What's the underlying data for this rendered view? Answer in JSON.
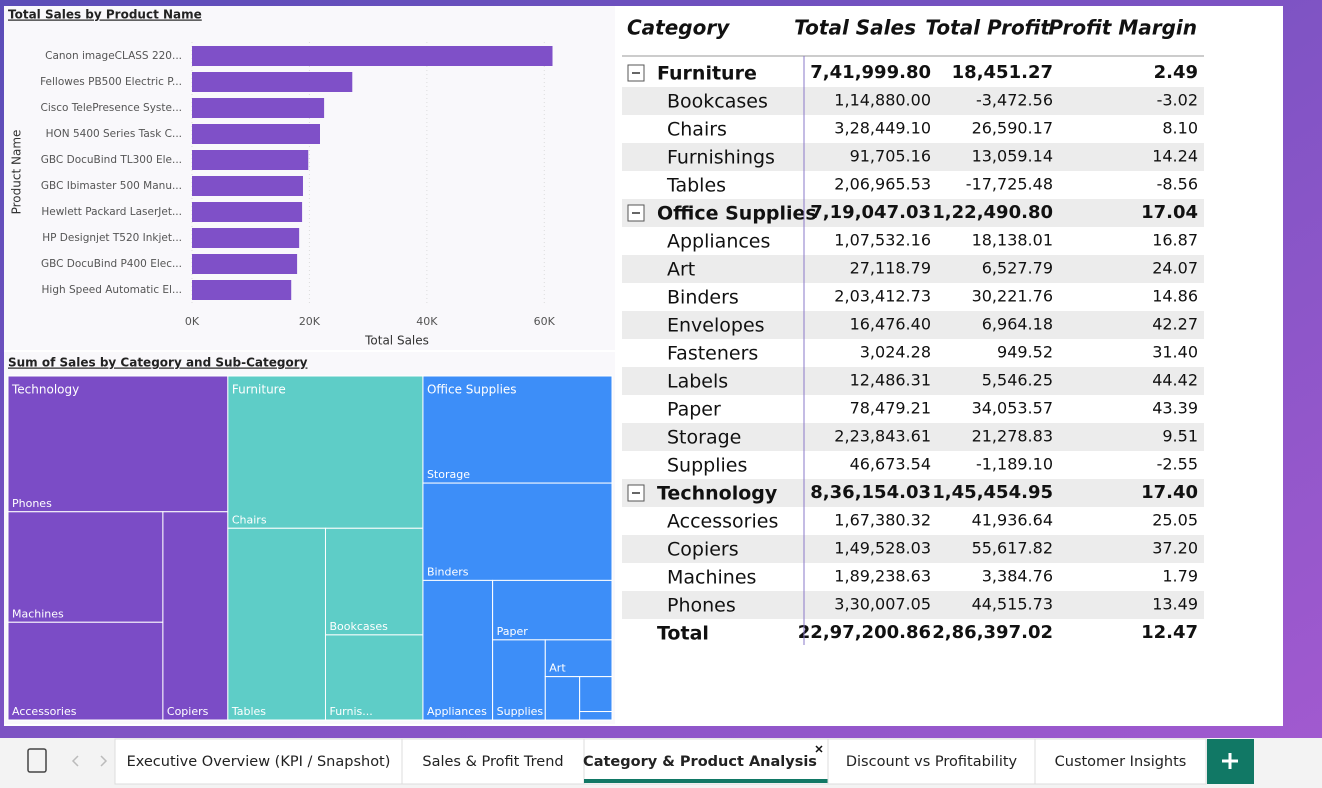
{
  "chart_data": [
    {
      "type": "bar",
      "orientation": "horizontal",
      "title": "Total Sales by Product Name",
      "x_label": "Total Sales",
      "y_label": "Product Name",
      "categories": [
        "Canon imageCLASS 220...",
        "Fellowes PB500 Electric P...",
        "Cisco TelePresence Syste...",
        "HON 5400 Series Task C...",
        "GBC DocuBind TL300 Ele...",
        "GBC Ibimaster 500 Manu...",
        "Hewlett Packard LaserJet...",
        "HP Designjet T520 Inkjet...",
        "GBC DocuBind P400 Elec...",
        "High Speed Automatic El..."
      ],
      "values": [
        61400,
        27300,
        22500,
        21800,
        19800,
        18900,
        18750,
        18250,
        17900,
        16900
      ],
      "color": "#7f50c8",
      "xlim": [
        0,
        70000
      ],
      "xticks": [
        {
          "value": 0,
          "label": "0K"
        },
        {
          "value": 20000,
          "label": "20K"
        },
        {
          "value": 40000,
          "label": "40K"
        },
        {
          "value": 60000,
          "label": "60K"
        }
      ],
      "grid": true
    },
    {
      "type": "treemap",
      "title": "Sum of Sales by Category and Sub-Category",
      "groups": [
        {
          "name": "Technology",
          "color": "#7b4cc6",
          "children": [
            {
              "label": "Phones",
              "value": 330007.05
            },
            {
              "label": "Machines",
              "value": 189238.63
            },
            {
              "label": "Accessories",
              "value": 167380.32
            },
            {
              "label": "Copiers",
              "value": 149528.03
            }
          ]
        },
        {
          "name": "Furniture",
          "color": "#5ecdc7",
          "children": [
            {
              "label": "Chairs",
              "value": 328449.1
            },
            {
              "label": "Tables",
              "value": 206965.53
            },
            {
              "label": "Bookcases",
              "value": 114880.0
            },
            {
              "label": "Furnis...",
              "value": 91705.16
            }
          ]
        },
        {
          "name": "Office Supplies",
          "color": "#3d8ef8",
          "children": [
            {
              "label": "Storage",
              "value": 223843.61
            },
            {
              "label": "Binders",
              "value": 203412.73
            },
            {
              "label": "Appliances",
              "value": 107532.16
            },
            {
              "label": "Paper",
              "value": 78479.21
            },
            {
              "label": "Supplies",
              "value": 46673.54
            },
            {
              "label": "Art",
              "value": 27118.79
            },
            {
              "label": null,
              "value": 16476.4
            },
            {
              "label": null,
              "value": 12486.31
            },
            {
              "label": null,
              "value": 3024.28
            }
          ]
        }
      ]
    }
  ],
  "table": {
    "columns": [
      "Category",
      "Total Sales",
      "Total Profit",
      "Profit Margin"
    ],
    "groups": [
      {
        "cells": [
          "Furniture",
          "7,41,999.80",
          "18,451.27",
          "2.49"
        ],
        "children": [
          [
            "Bookcases",
            "1,14,880.00",
            "-3,472.56",
            "-3.02"
          ],
          [
            "Chairs",
            "3,28,449.10",
            "26,590.17",
            "8.10"
          ],
          [
            "Furnishings",
            "91,705.16",
            "13,059.14",
            "14.24"
          ],
          [
            "Tables",
            "2,06,965.53",
            "-17,725.48",
            "-8.56"
          ]
        ]
      },
      {
        "cells": [
          "Office Supplies",
          "7,19,047.03",
          "1,22,490.80",
          "17.04"
        ],
        "children": [
          [
            "Appliances",
            "1,07,532.16",
            "18,138.01",
            "16.87"
          ],
          [
            "Art",
            "27,118.79",
            "6,527.79",
            "24.07"
          ],
          [
            "Binders",
            "2,03,412.73",
            "30,221.76",
            "14.86"
          ],
          [
            "Envelopes",
            "16,476.40",
            "6,964.18",
            "42.27"
          ],
          [
            "Fasteners",
            "3,024.28",
            "949.52",
            "31.40"
          ],
          [
            "Labels",
            "12,486.31",
            "5,546.25",
            "44.42"
          ],
          [
            "Paper",
            "78,479.21",
            "34,053.57",
            "43.39"
          ],
          [
            "Storage",
            "2,23,843.61",
            "21,278.83",
            "9.51"
          ],
          [
            "Supplies",
            "46,673.54",
            "-1,189.10",
            "-2.55"
          ]
        ]
      },
      {
        "cells": [
          "Technology",
          "8,36,154.03",
          "1,45,454.95",
          "17.40"
        ],
        "children": [
          [
            "Accessories",
            "1,67,380.32",
            "41,936.64",
            "25.05"
          ],
          [
            "Copiers",
            "1,49,528.03",
            "55,617.82",
            "37.20"
          ],
          [
            "Machines",
            "1,89,238.63",
            "3,384.76",
            "1.79"
          ],
          [
            "Phones",
            "3,30,007.05",
            "44,515.73",
            "13.49"
          ]
        ]
      }
    ],
    "total": [
      "Total",
      "22,97,200.86",
      "2,86,397.02",
      "12.47"
    ]
  },
  "tabs": {
    "items": [
      "Executive Overview (KPI / Snapshot)",
      "Sales & Profit Trend",
      "Category & Product Analysis",
      "Discount vs Profitability",
      "Customer Insights"
    ],
    "active": 2
  }
}
